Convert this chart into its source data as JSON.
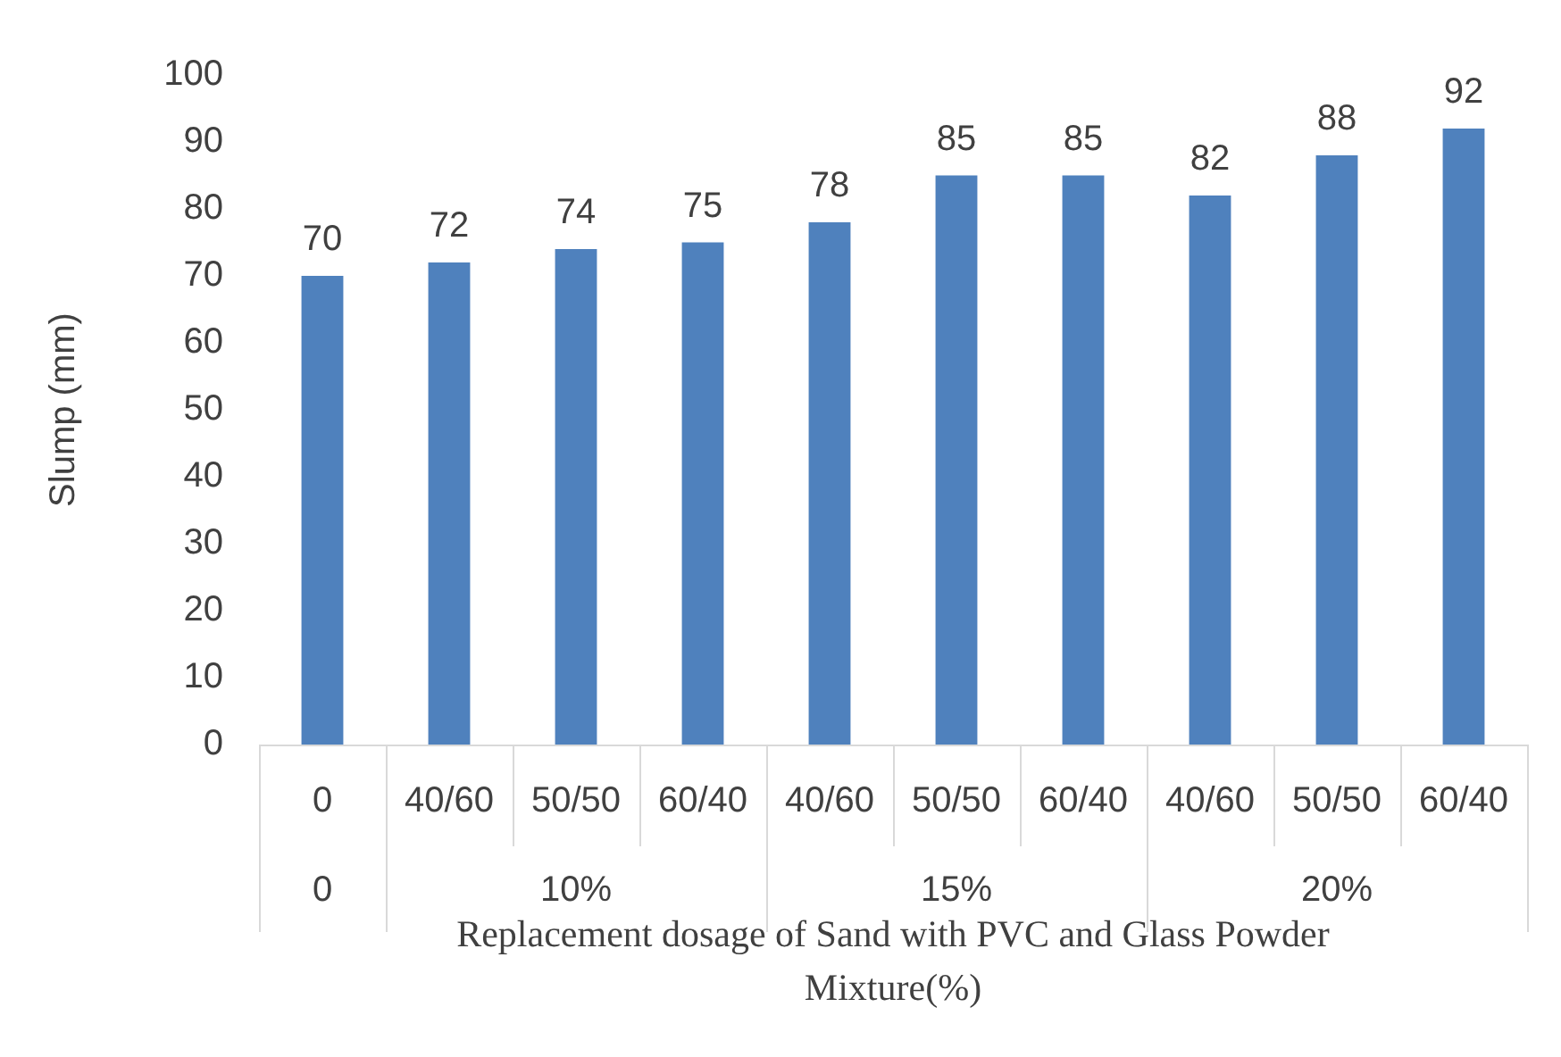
{
  "chart_data": {
    "type": "bar",
    "xlabel": "Replacement dosage of Sand with PVC and Glass Powder Mixture(%)",
    "ylabel": "Slump (mm)",
    "categories": [
      "0",
      "40/60",
      "50/50",
      "60/40",
      "40/60",
      "50/50",
      "60/40",
      "40/60",
      "50/50",
      "60/40"
    ],
    "values": [
      70,
      72,
      74,
      75,
      78,
      85,
      85,
      82,
      88,
      92
    ],
    "color": "#4f81bd",
    "ylim": [
      0,
      100
    ],
    "yticks": [
      0,
      10,
      20,
      30,
      40,
      50,
      60,
      70,
      80,
      90,
      100
    ],
    "grid": false,
    "legend": false,
    "data_labels": true,
    "annotations": [
      "0",
      "10%",
      "15%",
      "20%"
    ]
  }
}
